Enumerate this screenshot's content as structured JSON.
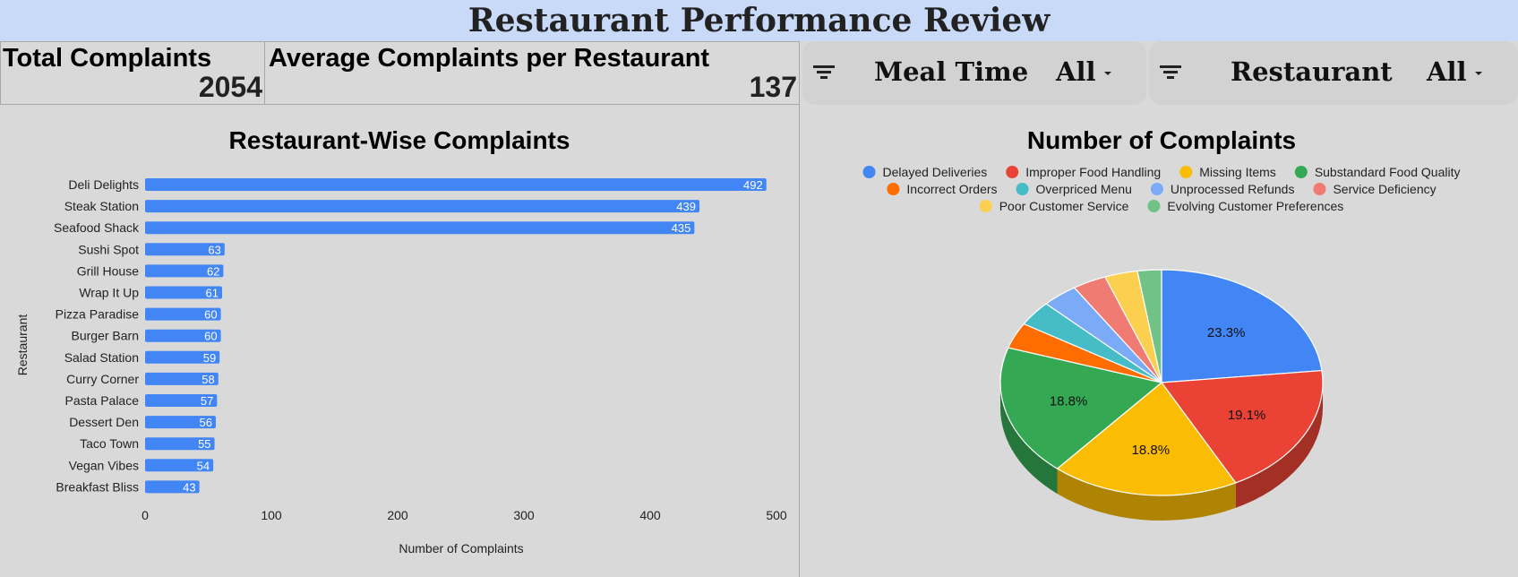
{
  "header": {
    "title": "Restaurant Performance Review"
  },
  "kpis": {
    "total_label": "Total Complaints",
    "total_value": "2054",
    "avg_label": "Average Complaints per Restaurant",
    "avg_value": "137"
  },
  "filters": [
    {
      "label": "Meal Time",
      "value": "All",
      "icon": "filter-icon"
    },
    {
      "label": "Restaurant",
      "value": "All",
      "icon": "filter-icon"
    }
  ],
  "colors": {
    "bar": "#4285f4",
    "header_bg": "#c9daf8",
    "page_bg": "#d9d9d9"
  },
  "chart_data": [
    {
      "type": "bar",
      "orientation": "horizontal",
      "title": "Restaurant-Wise Complaints",
      "xlabel": "Number of Complaints",
      "ylabel": "Restaurant",
      "xlim": [
        0,
        500
      ],
      "xticks": [
        "0",
        "100",
        "200",
        "300",
        "400",
        "500"
      ],
      "categories": [
        "Deli Delights",
        "Steak Station",
        "Seafood Shack",
        "Sushi Spot",
        "Grill House",
        "Wrap It Up",
        "Pizza Paradise",
        "Burger Barn",
        "Salad Station",
        "Curry Corner",
        "Pasta Palace",
        "Dessert Den",
        "Taco Town",
        "Vegan Vibes",
        "Breakfast Bliss"
      ],
      "values": [
        492,
        439,
        435,
        63,
        62,
        61,
        60,
        60,
        59,
        58,
        57,
        56,
        55,
        54,
        43
      ],
      "grid": false
    },
    {
      "type": "pie",
      "title": "Number of Complaints",
      "legend_position": "top",
      "labels": [
        "Delayed Deliveries",
        "Improper Food Handling",
        "Missing Items",
        "Substandard Food Quality",
        "Incorrect Orders",
        "Overpriced Menu",
        "Unprocessed Refunds",
        "Service Deficiency",
        "Poor Customer Service",
        "Evolving Customer Preferences"
      ],
      "values": [
        23.3,
        19.1,
        18.8,
        18.8,
        3.7,
        3.6,
        3.6,
        3.4,
        3.3,
        2.4
      ],
      "slice_labels": [
        "23.3%",
        "19.1%",
        "18.8%",
        "18.8%",
        "",
        "",
        "",
        "",
        "",
        ""
      ],
      "colors": [
        "#4285f4",
        "#ea4335",
        "#fbbc04",
        "#34a853",
        "#ff6d01",
        "#46bdc6",
        "#7baaf7",
        "#f07b72",
        "#fcd04f",
        "#71c287"
      ]
    }
  ]
}
